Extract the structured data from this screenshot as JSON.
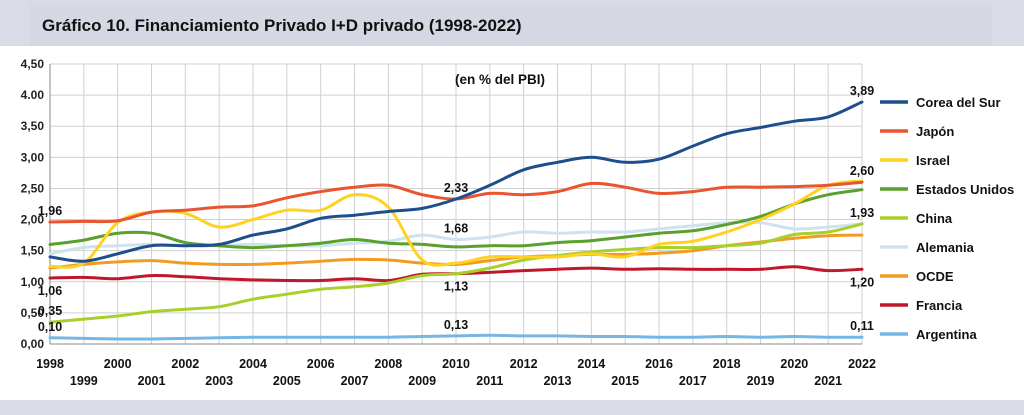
{
  "header": {
    "title": "Gráfico 10. Financiamiento Privado I+D privado (1998-2022)"
  },
  "chart_data": {
    "type": "line",
    "title": "Gráfico 10. Financiamiento Privado I+D privado (1998-2022)",
    "subtitle": "(en % del PBI)",
    "x": [
      1998,
      1999,
      2000,
      2001,
      2002,
      2003,
      2004,
      2005,
      2006,
      2007,
      2008,
      2009,
      2010,
      2011,
      2012,
      2013,
      2014,
      2015,
      2016,
      2017,
      2018,
      2019,
      2020,
      2021,
      2022
    ],
    "ylim": [
      0,
      4.5
    ],
    "yticks": [
      "0,00",
      "0,50",
      "1,00",
      "1,50",
      "2,00",
      "2,50",
      "3,00",
      "3,50",
      "4.00",
      "4,50"
    ],
    "grid": true,
    "legend_position": "right",
    "series": [
      {
        "name": "Corea del Sur",
        "color": "#1f4e8c",
        "values": [
          1.4,
          1.33,
          1.45,
          1.58,
          1.58,
          1.6,
          1.75,
          1.85,
          2.02,
          2.07,
          2.13,
          2.18,
          2.33,
          2.55,
          2.8,
          2.92,
          3.0,
          2.92,
          2.97,
          3.18,
          3.38,
          3.48,
          3.58,
          3.65,
          3.89
        ]
      },
      {
        "name": "Japón",
        "color": "#e8552e",
        "values": [
          1.96,
          1.97,
          1.98,
          2.12,
          2.15,
          2.2,
          2.22,
          2.35,
          2.45,
          2.52,
          2.55,
          2.4,
          2.33,
          2.42,
          2.4,
          2.45,
          2.58,
          2.52,
          2.42,
          2.45,
          2.52,
          2.52,
          2.53,
          2.55,
          2.6
        ]
      },
      {
        "name": "Israel",
        "color": "#ffd21f",
        "values": [
          1.25,
          1.3,
          1.95,
          2.12,
          2.1,
          1.88,
          2.0,
          2.15,
          2.15,
          2.4,
          2.2,
          1.35,
          1.3,
          1.4,
          1.4,
          1.4,
          1.45,
          1.4,
          1.6,
          1.65,
          1.8,
          2.0,
          2.25,
          2.55,
          2.62
        ]
      },
      {
        "name": "Estados Unidos",
        "color": "#5aa02c",
        "values": [
          1.6,
          1.67,
          1.78,
          1.78,
          1.63,
          1.58,
          1.55,
          1.58,
          1.62,
          1.68,
          1.62,
          1.6,
          1.56,
          1.58,
          1.58,
          1.63,
          1.66,
          1.72,
          1.78,
          1.82,
          1.92,
          2.05,
          2.25,
          2.4,
          2.48
        ]
      },
      {
        "name": "China",
        "color": "#a9cf2a",
        "values": [
          0.35,
          0.4,
          0.45,
          0.52,
          0.56,
          0.6,
          0.72,
          0.8,
          0.88,
          0.92,
          0.98,
          1.1,
          1.13,
          1.22,
          1.35,
          1.42,
          1.48,
          1.52,
          1.55,
          1.55,
          1.58,
          1.62,
          1.76,
          1.8,
          1.93
        ]
      },
      {
        "name": "Alemania",
        "color": "#cfe2ef",
        "values": [
          1.45,
          1.55,
          1.58,
          1.6,
          1.58,
          1.58,
          1.6,
          1.58,
          1.58,
          1.62,
          1.65,
          1.75,
          1.68,
          1.72,
          1.8,
          1.78,
          1.8,
          1.8,
          1.85,
          1.9,
          1.95,
          1.95,
          1.85,
          1.88,
          1.93
        ]
      },
      {
        "name": "OCDE",
        "color": "#f29b22",
        "values": [
          1.22,
          1.28,
          1.32,
          1.34,
          1.3,
          1.28,
          1.28,
          1.3,
          1.33,
          1.36,
          1.35,
          1.3,
          1.28,
          1.34,
          1.4,
          1.42,
          1.44,
          1.44,
          1.46,
          1.5,
          1.58,
          1.64,
          1.7,
          1.74,
          1.75
        ]
      },
      {
        "name": "Francia",
        "color": "#c0182a",
        "values": [
          1.06,
          1.07,
          1.05,
          1.1,
          1.08,
          1.05,
          1.03,
          1.02,
          1.02,
          1.05,
          1.02,
          1.12,
          1.13,
          1.15,
          1.18,
          1.2,
          1.22,
          1.2,
          1.21,
          1.2,
          1.2,
          1.2,
          1.24,
          1.18,
          1.2
        ]
      },
      {
        "name": "Argentina",
        "color": "#74b7e6",
        "values": [
          0.1,
          0.09,
          0.08,
          0.08,
          0.09,
          0.1,
          0.11,
          0.11,
          0.11,
          0.11,
          0.11,
          0.12,
          0.13,
          0.14,
          0.13,
          0.13,
          0.12,
          0.12,
          0.11,
          0.11,
          0.12,
          0.11,
          0.12,
          0.11,
          0.11
        ]
      }
    ],
    "annotations": [
      {
        "series": "Japón",
        "x": 1998,
        "text": "1,96",
        "pos": "above"
      },
      {
        "series": "Francia",
        "x": 1998,
        "text": "1,06",
        "pos": "below"
      },
      {
        "series": "China",
        "x": 1998,
        "text": "0,35",
        "pos": "above"
      },
      {
        "series": "Argentina",
        "x": 1998,
        "text": "0,10",
        "pos": "above"
      },
      {
        "series": "Japón",
        "x": 2010,
        "text": "2,33",
        "pos": "above"
      },
      {
        "series": "Alemania",
        "x": 2010,
        "text": "1,68",
        "pos": "above"
      },
      {
        "series": "Francia",
        "x": 2010,
        "text": "1,13",
        "pos": "below"
      },
      {
        "series": "Argentina",
        "x": 2010,
        "text": "0,13",
        "pos": "above"
      },
      {
        "series": "Corea del Sur",
        "x": 2022,
        "text": "3,89",
        "pos": "above"
      },
      {
        "series": "Japón",
        "x": 2022,
        "text": "2,60",
        "pos": "above"
      },
      {
        "series": "China",
        "x": 2022,
        "text": "1,93",
        "pos": "above"
      },
      {
        "series": "Francia",
        "x": 2022,
        "text": "1,20",
        "pos": "below"
      },
      {
        "series": "Argentina",
        "x": 2022,
        "text": "0,11",
        "pos": "above"
      }
    ]
  }
}
